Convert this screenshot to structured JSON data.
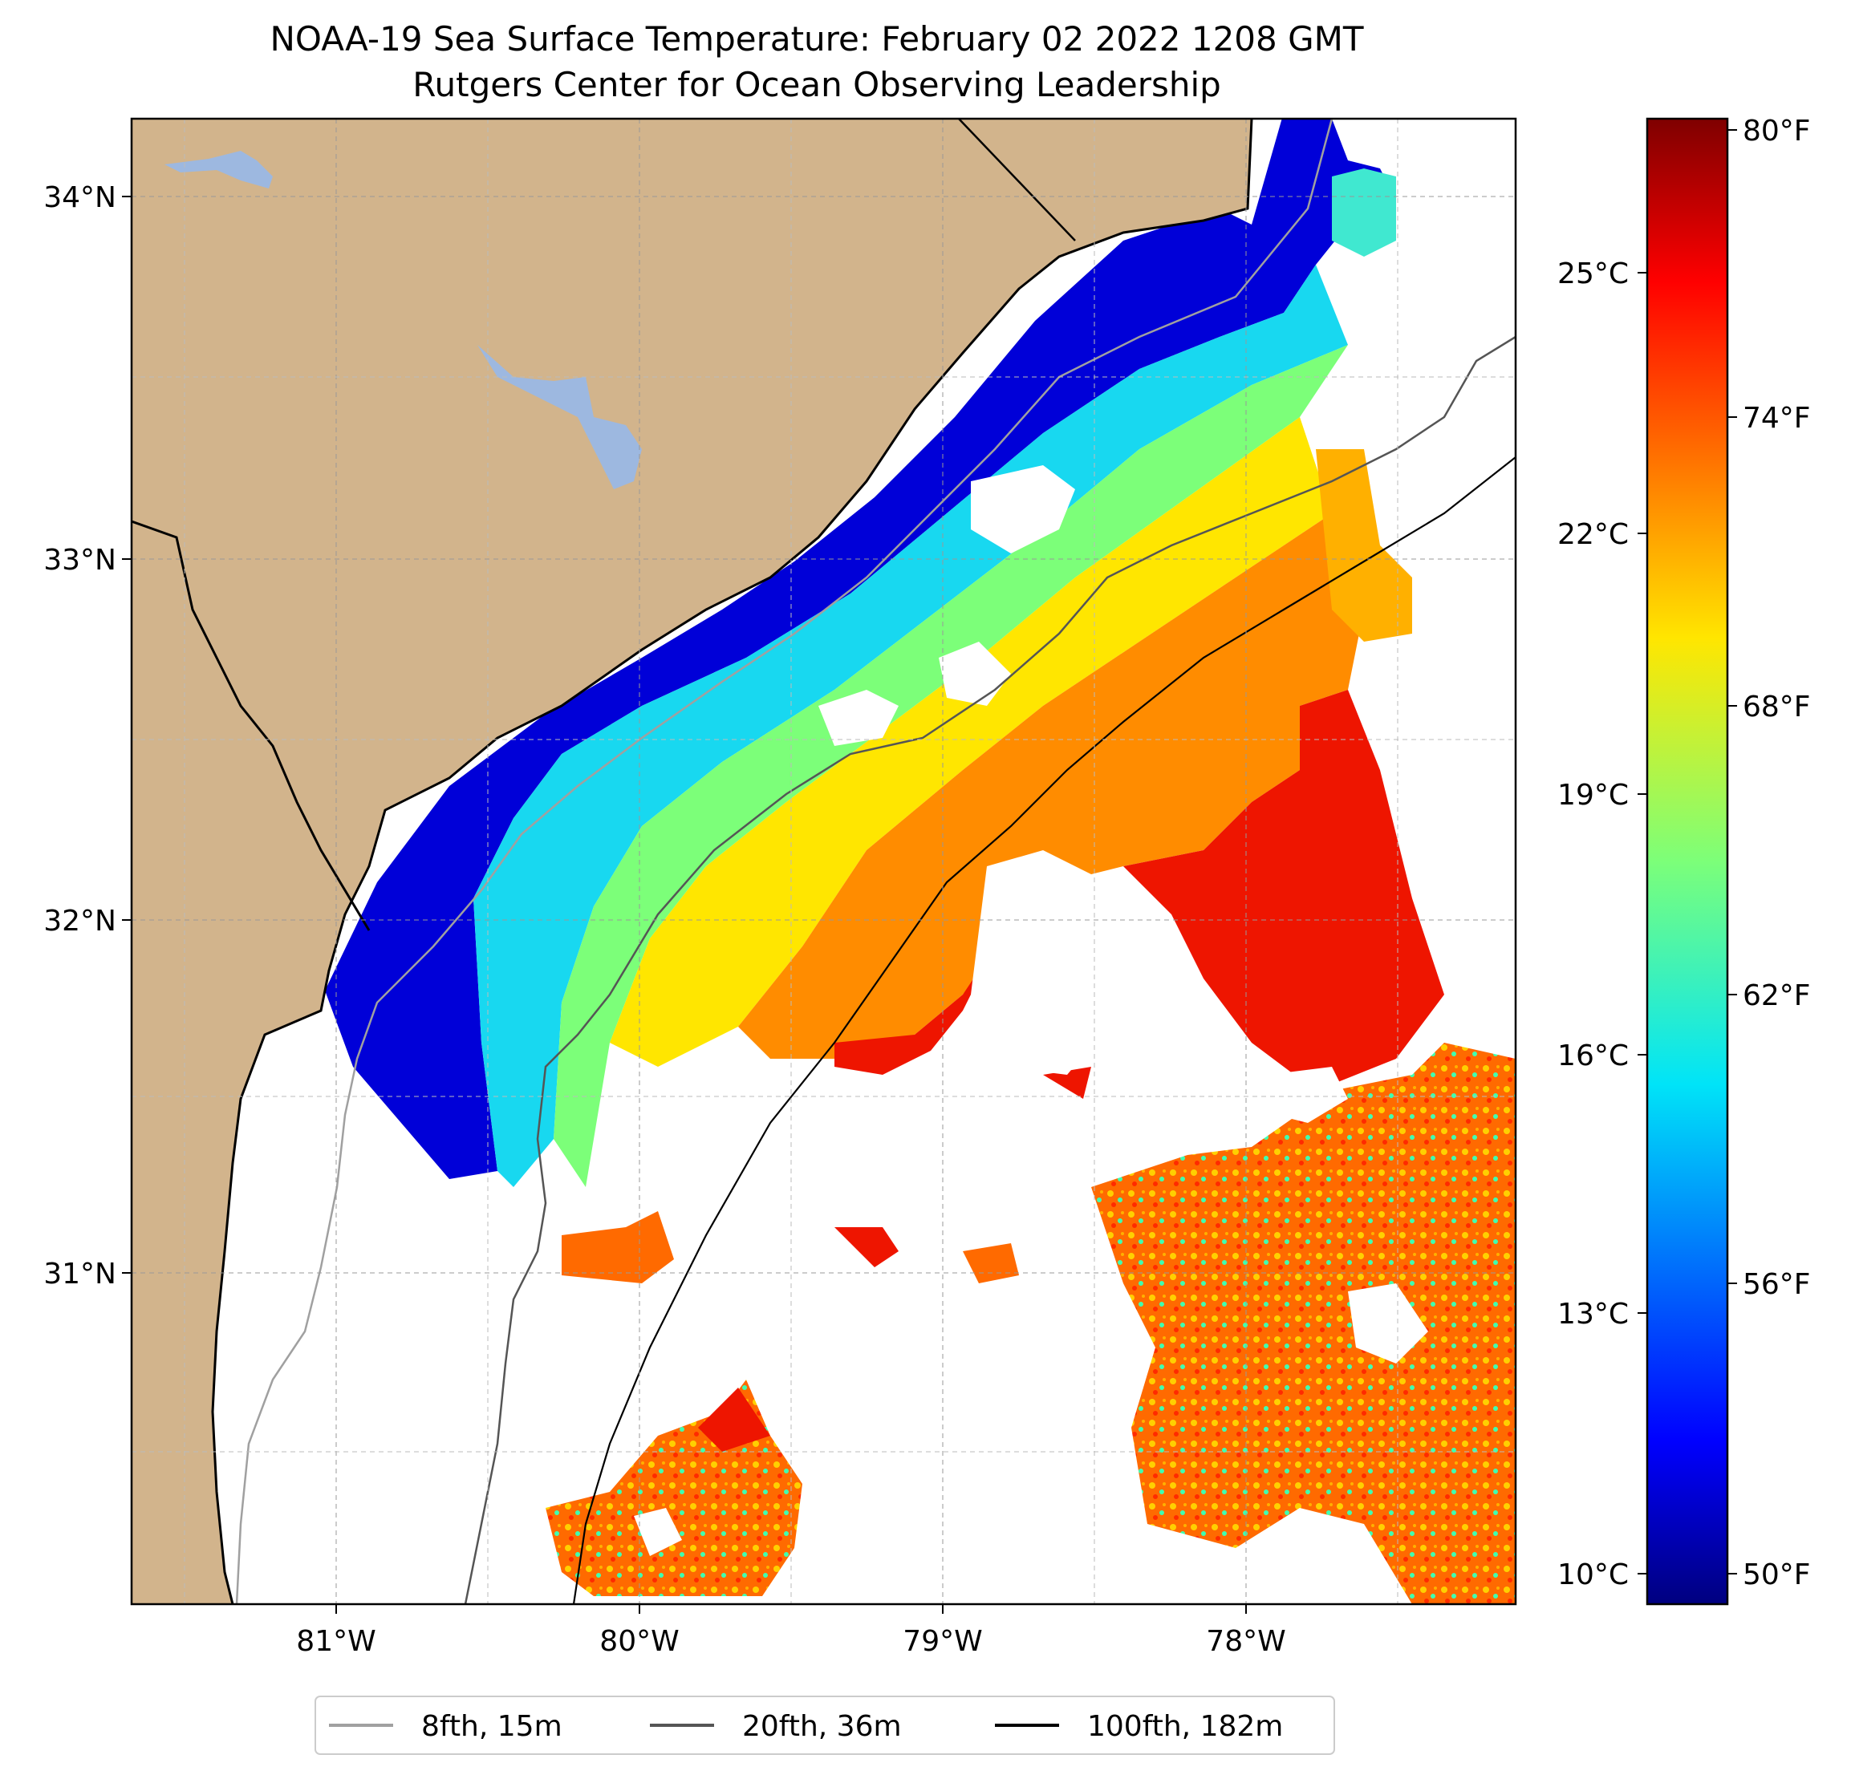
{
  "title": {
    "line1": "NOAA-19 Sea Surface Temperature: February 02 2022 1208 GMT",
    "line2": "Rutgers Center for Ocean Observing Leadership"
  },
  "map": {
    "lat_labels": [
      "34°N",
      "33°N",
      "32°N",
      "31°N"
    ],
    "lon_labels": [
      "81°W",
      "80°W",
      "79°W",
      "78°W"
    ],
    "gridlines": true,
    "colors": {
      "land": "#d2b48c",
      "lake": "#9db8e0",
      "isobath_8fth": "#a0a0a0",
      "isobath_20fth": "#555555",
      "isobath_100fth": "#000000"
    }
  },
  "colorbar": {
    "celsius_labels": [
      "25°C",
      "22°C",
      "19°C",
      "16°C",
      "13°C",
      "10°C"
    ],
    "fahrenheit_labels": [
      "80°F",
      "74°F",
      "68°F",
      "62°F",
      "56°F",
      "50°F"
    ],
    "colormap": "jet",
    "range_f": [
      49.5,
      80.5
    ]
  },
  "legend": {
    "items": [
      {
        "label": "8fth, 15m",
        "color": "#a0a0a0"
      },
      {
        "label": "20fth, 36m",
        "color": "#555555"
      },
      {
        "label": "100fth, 182m",
        "color": "#000000"
      }
    ],
    "placement": "bottom-center"
  }
}
